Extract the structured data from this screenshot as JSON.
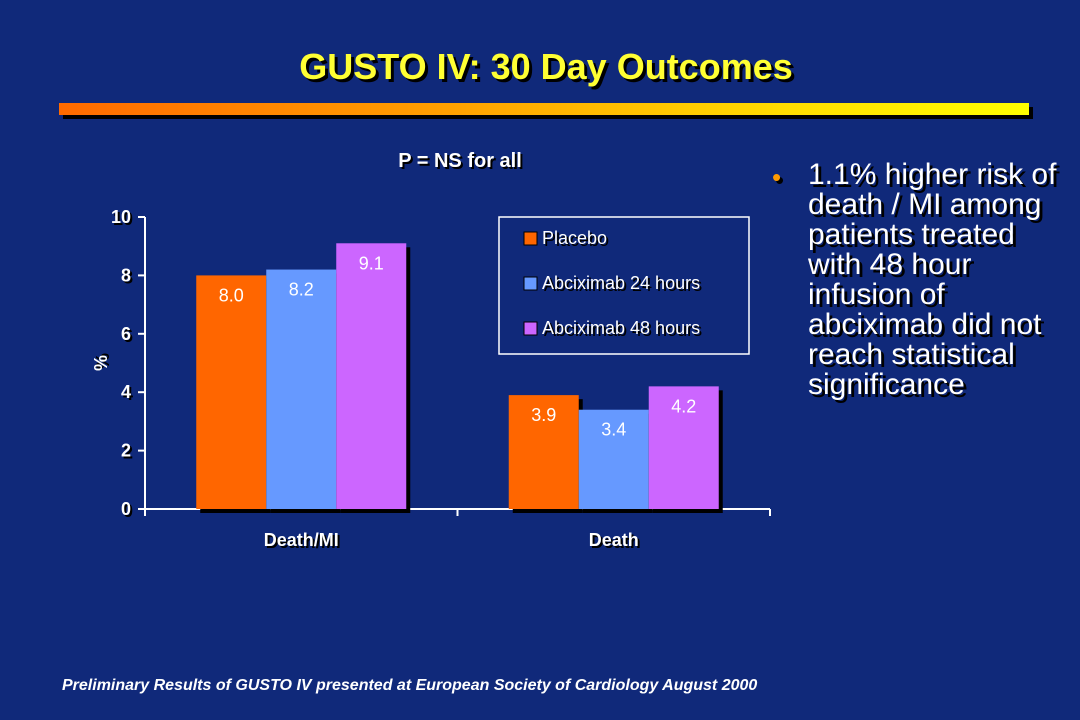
{
  "slide": {
    "title": "GUSTO IV:  30 Day Outcomes",
    "p_note": "P = NS for all",
    "bullet": "1.1% higher risk of death / MI among patients treated with 48 hour infusion of abciximab did not reach statistical significance",
    "footnote": "Preliminary Results of GUSTO IV presented at European Society of Cardiology August 2000"
  },
  "colors": {
    "background": "#10297a",
    "title": "#ffff33",
    "bullet_dot": "#ff9a00"
  },
  "chart_data": {
    "type": "bar",
    "title": "",
    "xlabel": "",
    "ylabel": "%",
    "ylim": [
      0,
      10
    ],
    "yticks": [
      0,
      2,
      4,
      6,
      8,
      10
    ],
    "categories": [
      "Death/MI",
      "Death"
    ],
    "series": [
      {
        "name": "Placebo",
        "values": [
          8.0,
          3.9
        ],
        "labels": [
          "8.0",
          "3.9"
        ],
        "color": "#ff6600"
      },
      {
        "name": "Abciximab 24 hours",
        "values": [
          8.2,
          3.4
        ],
        "labels": [
          "8.2",
          "3.4"
        ],
        "color": "#6699ff"
      },
      {
        "name": "Abciximab 48 hours",
        "values": [
          9.1,
          4.2
        ],
        "labels": [
          "9.1",
          "4.2"
        ],
        "color": "#cc66ff"
      }
    ],
    "legend": "top-right",
    "grid": false
  }
}
